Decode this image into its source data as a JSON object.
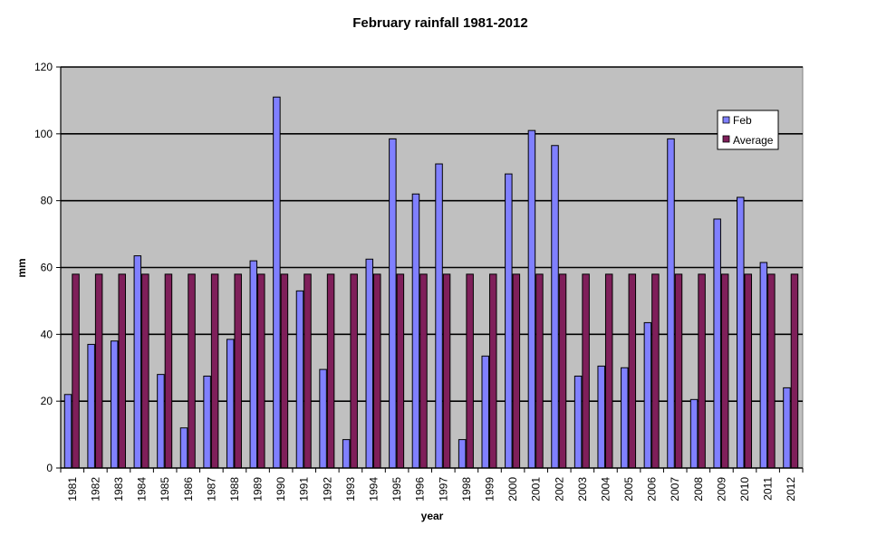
{
  "chart_data": {
    "type": "bar",
    "title": "February rainfall  1981-2012",
    "xlabel": "year",
    "ylabel": "mm",
    "ylim": [
      0,
      120
    ],
    "yticks": [
      0,
      20,
      40,
      60,
      80,
      100,
      120
    ],
    "grid": true,
    "legend_position": "top-right",
    "categories": [
      "1981",
      "1982",
      "1983",
      "1984",
      "1985",
      "1986",
      "1987",
      "1988",
      "1989",
      "1990",
      "1991",
      "1992",
      "1993",
      "1994",
      "1995",
      "1996",
      "1997",
      "1998",
      "1999",
      "2000",
      "2001",
      "2002",
      "2003",
      "2004",
      "2005",
      "2006",
      "2007",
      "2008",
      "2009",
      "2010",
      "2011",
      "2012"
    ],
    "series": [
      {
        "name": "Feb",
        "color": "#8080ff",
        "values": [
          22,
          37,
          38,
          63.5,
          28,
          12,
          27.5,
          38.5,
          62,
          111,
          53,
          29.5,
          8.5,
          62.5,
          98.5,
          82,
          91,
          8.5,
          33.5,
          88,
          101,
          96.5,
          27.5,
          30.5,
          30,
          43.5,
          98.5,
          20.5,
          74.5,
          81,
          61.5,
          24
        ]
      },
      {
        "name": "Average",
        "color": "#7f1f5a",
        "values": [
          58,
          58,
          58,
          58,
          58,
          58,
          58,
          58,
          58,
          58,
          58,
          58,
          58,
          58,
          58,
          58,
          58,
          58,
          58,
          58,
          58,
          58,
          58,
          58,
          58,
          58,
          58,
          58,
          58,
          58,
          58,
          58
        ]
      }
    ],
    "plot_background": "#c0c0c0"
  }
}
